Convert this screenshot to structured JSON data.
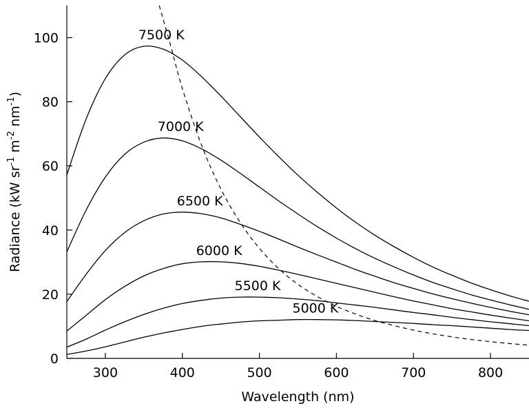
{
  "chart_data": {
    "type": "line",
    "title": "",
    "xlabel": "Wavelength (nm)",
    "ylabel": {
      "base": "Radiance (kW sr",
      "sup1": "-1",
      "mid1": " m",
      "sup2": "-2",
      "mid2": " nm",
      "sup3": "-1",
      "end": ")"
    },
    "xlim": [
      250,
      850
    ],
    "ylim": [
      0,
      110
    ],
    "xticks": [
      300,
      400,
      500,
      600,
      700,
      800
    ],
    "yticks": [
      0,
      20,
      40,
      60,
      80,
      100
    ],
    "grid": false,
    "x": [
      250,
      275,
      300,
      325,
      350,
      375,
      400,
      425,
      450,
      475,
      500,
      525,
      550,
      575,
      600,
      625,
      650,
      675,
      700,
      725,
      750,
      775,
      800,
      825,
      850
    ],
    "series": [
      {
        "name": "7500 K",
        "label": "7500 K",
        "values": [
          57.2,
          74.6,
          87.2,
          94.6,
          97.3,
          96.4,
          93.0,
          87.8,
          81.8,
          75.4,
          69.0,
          62.9,
          57.1,
          51.8,
          46.9,
          42.4,
          38.4,
          34.8,
          31.5,
          28.5,
          25.9,
          23.5,
          21.4,
          19.5,
          17.8
        ]
      },
      {
        "name": "7000 K",
        "label": "7000 K",
        "values": [
          33.2,
          46.2,
          56.5,
          63.6,
          67.4,
          68.7,
          67.8,
          65.3,
          61.8,
          57.7,
          53.4,
          49.1,
          45.0,
          41.1,
          37.5,
          34.2,
          31.2,
          28.5,
          26.0,
          23.7,
          21.7,
          19.8,
          18.2,
          16.7,
          15.3
        ]
      },
      {
        "name": "6500 K",
        "label": "6500 K",
        "values": [
          17.7,
          26.2,
          33.6,
          39.2,
          42.9,
          45.0,
          45.6,
          45.1,
          43.8,
          41.8,
          39.6,
          37.2,
          34.7,
          32.3,
          30.0,
          27.7,
          25.6,
          23.6,
          21.8,
          20.1,
          18.6,
          17.2,
          15.9,
          14.7,
          13.6
        ]
      },
      {
        "name": "6000 K",
        "label": "6000 K",
        "values": [
          8.5,
          13.4,
          18.3,
          22.4,
          25.7,
          28.0,
          29.5,
          30.1,
          30.1,
          29.6,
          28.7,
          27.5,
          26.2,
          24.8,
          23.4,
          22.0,
          20.6,
          19.2,
          17.9,
          16.7,
          15.5,
          14.5,
          13.5,
          12.6,
          11.7
        ]
      },
      {
        "name": "5500 K",
        "label": "5500 K",
        "values": [
          3.5,
          6.0,
          8.8,
          11.4,
          13.7,
          15.6,
          17.1,
          18.1,
          18.8,
          19.1,
          19.1,
          18.9,
          18.5,
          18.0,
          17.3,
          16.6,
          15.9,
          15.1,
          14.3,
          13.6,
          12.8,
          12.1,
          11.4,
          10.8,
          10.2
        ]
      },
      {
        "name": "5000 K",
        "label": "5000 K",
        "values": [
          1.2,
          2.3,
          3.6,
          5.1,
          6.6,
          7.9,
          9.0,
          10.0,
          10.7,
          11.3,
          11.7,
          11.9,
          12.1,
          12.1,
          12.0,
          11.8,
          11.5,
          11.2,
          10.9,
          10.5,
          10.2,
          9.8,
          9.4,
          9.0,
          8.7
        ]
      }
    ],
    "locus": {
      "style": "dashed",
      "x": [
        385,
        400,
        425,
        450,
        475,
        500,
        525,
        550,
        580,
        610,
        650,
        700,
        750,
        800,
        850
      ],
      "y": [
        97.3,
        84.1,
        66.4,
        52.8,
        42.4,
        34.3,
        28.0,
        23.1,
        18.6,
        15.2,
        11.8,
        8.8,
        6.7,
        5.2,
        4.1
      ]
    }
  }
}
